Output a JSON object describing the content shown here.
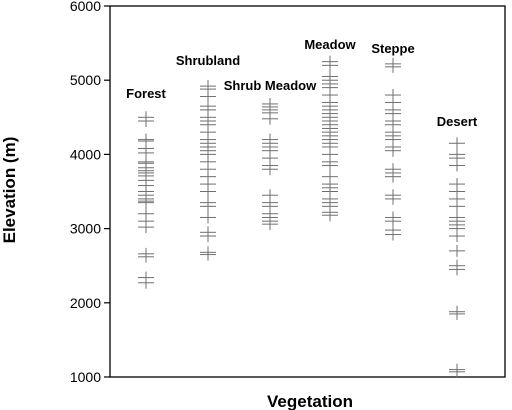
{
  "chart_data": {
    "type": "scatter",
    "xlabel": "Vegetation",
    "ylabel": "Elevation (m)",
    "ylim": [
      1000,
      6000
    ],
    "yticks": [
      "1000",
      "2000",
      "3000",
      "4000",
      "5000",
      "6000"
    ],
    "grid": false,
    "legend": "none",
    "categories": [
      "Forest",
      "Shrubland",
      "Shrub Meadow",
      "Meadow",
      "Steppe",
      "Desert"
    ],
    "series": [
      {
        "category": "Forest",
        "values": [
          2270,
          2340,
          2620,
          2660,
          3020,
          3100,
          3200,
          3350,
          3370,
          3400,
          3450,
          3500,
          3580,
          3650,
          3710,
          3750,
          3780,
          3820,
          3880,
          3900,
          4020,
          4080,
          4180,
          4200,
          4450,
          4500
        ]
      },
      {
        "category": "Shrubland",
        "values": [
          2650,
          2680,
          2900,
          2950,
          3150,
          3300,
          3350,
          3500,
          3600,
          3700,
          3800,
          3900,
          4000,
          4050,
          4100,
          4150,
          4200,
          4300,
          4400,
          4450,
          4500,
          4600,
          4650,
          4780,
          4880,
          4920
        ]
      },
      {
        "category": "Shrub Meadow",
        "values": [
          3060,
          3100,
          3150,
          3200,
          3300,
          3350,
          3450,
          3800,
          3850,
          3950,
          4050,
          4100,
          4150,
          4200,
          4480,
          4560,
          4600,
          4640,
          4680
        ]
      },
      {
        "category": "Meadow",
        "values": [
          3180,
          3220,
          3300,
          3350,
          3400,
          3500,
          3550,
          3600,
          3700,
          3850,
          3900,
          4000,
          4100,
          4150,
          4200,
          4250,
          4300,
          4350,
          4400,
          4450,
          4500,
          4550,
          4600,
          4650,
          4700,
          4800,
          4900,
          4950,
          5000,
          5050,
          5200,
          5250
        ]
      },
      {
        "category": "Steppe",
        "values": [
          2920,
          2980,
          3100,
          3150,
          3400,
          3450,
          3700,
          3750,
          3800,
          4050,
          4100,
          4200,
          4250,
          4300,
          4400,
          4450,
          4550,
          4600,
          4700,
          4800,
          5180,
          5220
        ]
      },
      {
        "category": "Desert",
        "values": [
          1070,
          1100,
          1850,
          1880,
          2450,
          2500,
          2700,
          2900,
          3000,
          3050,
          3100,
          3150,
          3300,
          3400,
          3500,
          3600,
          3850,
          3950,
          4000,
          4150
        ]
      }
    ]
  }
}
